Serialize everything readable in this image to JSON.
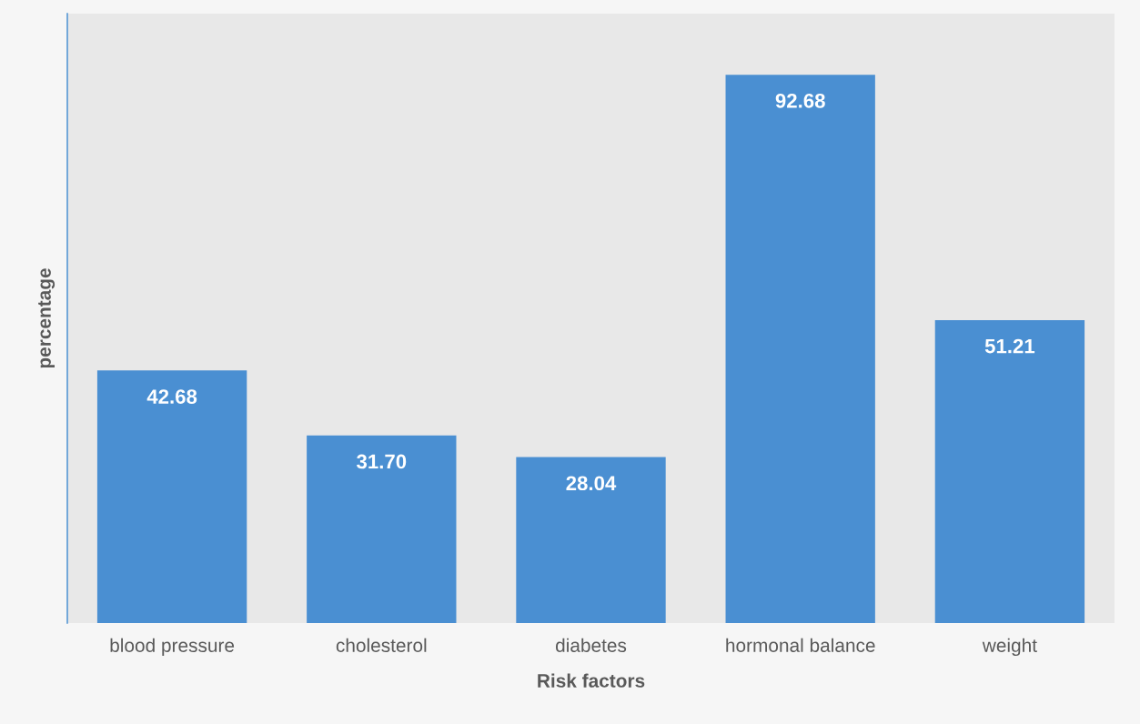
{
  "chart_data": {
    "type": "bar",
    "categories": [
      "blood pressure",
      "cholesterol",
      "diabetes",
      "hormonal balance",
      "weight"
    ],
    "values": [
      42.68,
      31.7,
      28.04,
      92.68,
      51.21
    ],
    "value_labels": [
      "42.68",
      "31.70",
      "28.04",
      "92.68",
      "51.21"
    ],
    "color": "#4a8fd2",
    "xlabel": "Risk factors",
    "ylabel": "percentage",
    "ylim": [
      0,
      103
    ],
    "tick_labels": "x",
    "grid": false,
    "legend": false
  }
}
